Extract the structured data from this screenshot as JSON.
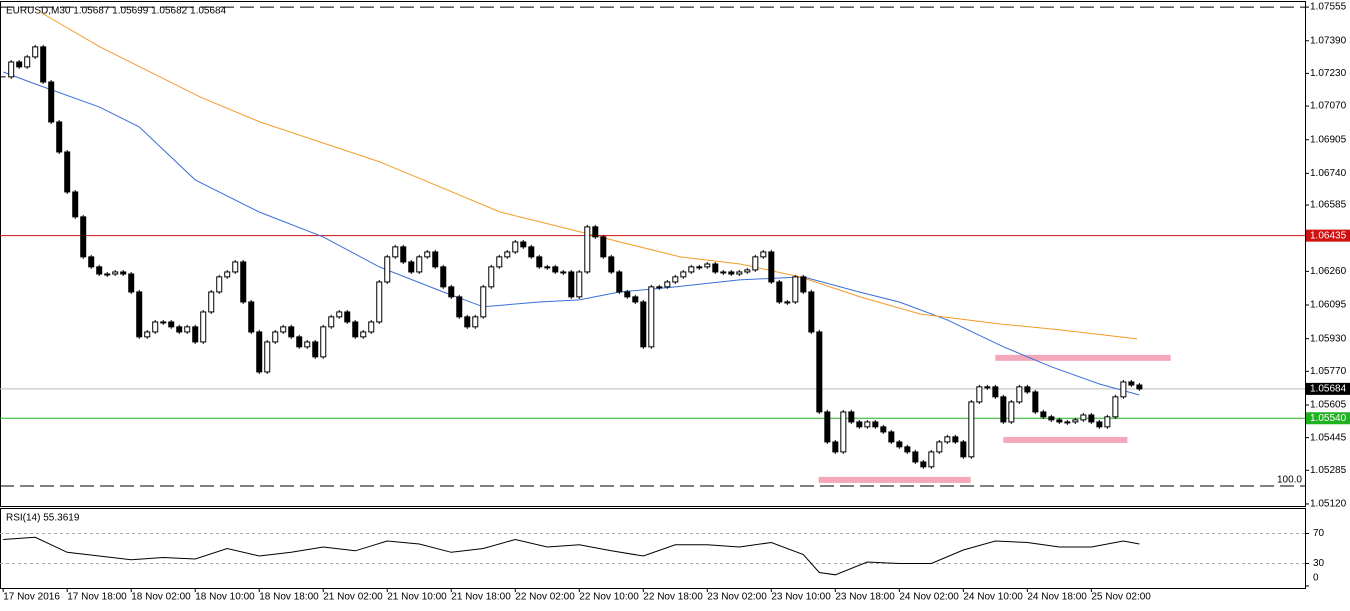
{
  "chart_data": {
    "type": "candlestick",
    "title": "EURUSD,M30  1.05687 1.05699 1.05682 1.05684",
    "xlim": [
      -0.4,
      162.7
    ],
    "ylim": [
      1.0511,
      1.0758
    ],
    "xticks": [
      {
        "value": 0,
        "label": "17 Nov 2016"
      },
      {
        "value": 8,
        "label": "17 Nov 18:00"
      },
      {
        "value": 16,
        "label": "18 Nov 02:00"
      },
      {
        "value": 24,
        "label": "18 Nov 10:00"
      },
      {
        "value": 32,
        "label": "18 Nov 18:00"
      },
      {
        "value": 40,
        "label": "21 Nov 02:00"
      },
      {
        "value": 48,
        "label": "21 Nov 10:00"
      },
      {
        "value": 56,
        "label": "21 Nov 18:00"
      },
      {
        "value": 64,
        "label": "22 Nov 02:00"
      },
      {
        "value": 72,
        "label": "22 Nov 10:00"
      },
      {
        "value": 80,
        "label": "22 Nov 18:00"
      },
      {
        "value": 88,
        "label": "23 Nov 02:00"
      },
      {
        "value": 96,
        "label": "23 Nov 10:00"
      },
      {
        "value": 104,
        "label": "23 Nov 18:00"
      },
      {
        "value": 112,
        "label": "24 Nov 02:00"
      },
      {
        "value": 120,
        "label": "24 Nov 10:00"
      },
      {
        "value": 128,
        "label": "24 Nov 18:00"
      },
      {
        "value": 136,
        "label": "25 Nov 02:00"
      }
    ],
    "yticks": [
      {
        "value": 1.07555,
        "label": "1.07555"
      },
      {
        "value": 1.0739,
        "label": "1.07390"
      },
      {
        "value": 1.0723,
        "label": "1.07230"
      },
      {
        "value": 1.0707,
        "label": "1.07070"
      },
      {
        "value": 1.06905,
        "label": "1.06905"
      },
      {
        "value": 1.0674,
        "label": "1.06740"
      },
      {
        "value": 1.06585,
        "label": "1.06585"
      },
      {
        "value": 1.0626,
        "label": "1.06260"
      },
      {
        "value": 1.06095,
        "label": "1.06095"
      },
      {
        "value": 1.0593,
        "label": "1.05930"
      },
      {
        "value": 1.0577,
        "label": "1.05770"
      },
      {
        "value": 1.05605,
        "label": "1.05605"
      },
      {
        "value": 1.05445,
        "label": "1.05445"
      },
      {
        "value": 1.05285,
        "label": "1.05285"
      },
      {
        "value": 1.0512,
        "label": "1.05120"
      }
    ],
    "close": [
      1.07213,
      1.07286,
      1.07262,
      1.07311,
      1.0736,
      1.07188,
      1.06992,
      1.06845,
      1.06649,
      1.06527,
      1.06331,
      1.06282,
      1.06247,
      1.06247,
      1.06257,
      1.06247,
      1.06159,
      1.05939,
      1.05963,
      1.06012,
      1.06012,
      1.05988,
      1.05963,
      1.05988,
      1.05914,
      1.06061,
      1.06159,
      1.06233,
      1.06257,
      1.06306,
      1.0611,
      1.05963,
      1.05767,
      1.05914,
      1.05963,
      1.05988,
      1.05939,
      1.0589,
      1.05914,
      1.05841,
      1.05988,
      1.06037,
      1.06061,
      1.06012,
      1.05939,
      1.05963,
      1.06012,
      1.06208,
      1.06331,
      1.0638,
      1.06306,
      1.06257,
      1.06331,
      1.06355,
      1.06282,
      1.06184,
      1.06135,
      1.06037,
      1.05988,
      1.06037,
      1.06184,
      1.06282,
      1.06331,
      1.06355,
      1.06404,
      1.0638,
      1.06331,
      1.06282,
      1.06282,
      1.06257,
      1.06257,
      1.06135,
      1.06257,
      1.06478,
      1.06429,
      1.06331,
      1.06257,
      1.06159,
      1.06135,
      1.0611,
      1.0589,
      1.06184,
      1.06184,
      1.06208,
      1.06233,
      1.06257,
      1.06282,
      1.06282,
      1.06296,
      1.06257,
      1.06257,
      1.06247,
      1.06257,
      1.06267,
      1.06331,
      1.06355,
      1.06208,
      1.0611,
      1.0611,
      1.06233,
      1.06159,
      1.05963,
      1.05571,
      1.05424,
      1.05375,
      1.05571,
      1.05522,
      1.05498,
      1.05522,
      1.05498,
      1.05473,
      1.05424,
      1.054,
      1.05375,
      1.05326,
      1.05302,
      1.05375,
      1.05424,
      1.05449,
      1.05424,
      1.05351,
      1.0562,
      1.05694,
      1.05694,
      1.05645,
      1.05522,
      1.0562,
      1.05694,
      1.05669,
      1.05571,
      1.05547,
      1.05532,
      1.05522,
      1.05522,
      1.05532,
      1.05556,
      1.05522,
      1.05498,
      1.05547,
      1.05645,
      1.05718,
      1.05703,
      1.05684
    ],
    "lines": [
      {
        "color": "#3a6fd8",
        "x": [
          0,
          4,
          12,
          17,
          24,
          32,
          40,
          47,
          55,
          60,
          67,
          72,
          77,
          84,
          92,
          100,
          107,
          112,
          118,
          125,
          131,
          137,
          142
        ],
        "values": [
          1.07237,
          1.07178,
          1.07066,
          1.06968,
          1.06708,
          1.06551,
          1.06429,
          1.06282,
          1.06159,
          1.06086,
          1.0611,
          1.0612,
          1.06159,
          1.06184,
          1.06218,
          1.06233,
          1.06159,
          1.0611,
          1.06022,
          1.0589,
          1.05792,
          1.05708,
          1.05654
        ]
      },
      {
        "color": "#f39c2a",
        "x": [
          4.6,
          12.1,
          19.6,
          24.6,
          32.1,
          39.6,
          47.1,
          54.6,
          62.1,
          69.6,
          77.1,
          84.6,
          92.1,
          99.6,
          107.1,
          114.6,
          124.6,
          132.1,
          141.7
        ],
        "values": [
          1.07531,
          1.0736,
          1.07213,
          1.07115,
          1.06992,
          1.06894,
          1.06796,
          1.06674,
          1.06551,
          1.06478,
          1.06404,
          1.06331,
          1.06296,
          1.06233,
          1.06135,
          1.06051,
          1.06002,
          1.05973,
          1.05929
        ]
      }
    ],
    "levels": [
      {
        "value": 1.06435,
        "label": "1.06435",
        "color": "#d01010"
      },
      {
        "value": 1.05684,
        "label": "1.05684",
        "color": "#000000"
      },
      {
        "value": 1.0554,
        "label": "1.05540",
        "color": "#1fb21f"
      }
    ],
    "dashed_levels": [
      {
        "price": 1.07555
      },
      {
        "price": 1.05208,
        "text": "100.0"
      }
    ],
    "zones": [
      {
        "start": 124,
        "end": 145.9,
        "price": 1.05836
      },
      {
        "start": 125,
        "end": 140.5,
        "price": 1.05434
      },
      {
        "start": 101.9,
        "end": 120.9,
        "price": 1.05238
      }
    ],
    "rsi": {
      "title": "RSI(14) 55.3619",
      "ylim": [
        0,
        100
      ],
      "yticks": [
        70,
        30,
        0
      ],
      "x": [
        0,
        4,
        8,
        12,
        16,
        20,
        24,
        28,
        32,
        36,
        40,
        44,
        48,
        52,
        56,
        60,
        64,
        68,
        72,
        76,
        80,
        84,
        88,
        92,
        96,
        100,
        102,
        104,
        108,
        112,
        116,
        120,
        124,
        128,
        132,
        136,
        140,
        142
      ],
      "values": [
        62,
        65,
        45,
        40,
        35,
        38,
        36,
        50,
        40,
        45,
        52,
        47,
        60,
        56,
        45,
        50,
        62,
        52,
        55,
        47,
        40,
        55,
        55,
        52,
        58,
        42,
        18,
        15,
        32,
        30,
        30,
        48,
        60,
        58,
        52,
        52,
        60,
        56
      ]
    }
  }
}
